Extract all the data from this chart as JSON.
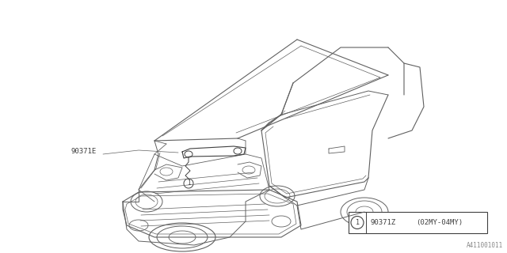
{
  "background_color": "#ffffff",
  "line_color": "#606060",
  "line_color_dark": "#404040",
  "label_90371E": "90371E",
  "label_90371Z": "90371Z",
  "label_model_year": "(02MY-04MY)",
  "part_number_circle_label": "1",
  "diagram_ref": "A411001011",
  "fig_width": 6.4,
  "fig_height": 3.2,
  "dpi": 100,
  "lw": 0.6
}
